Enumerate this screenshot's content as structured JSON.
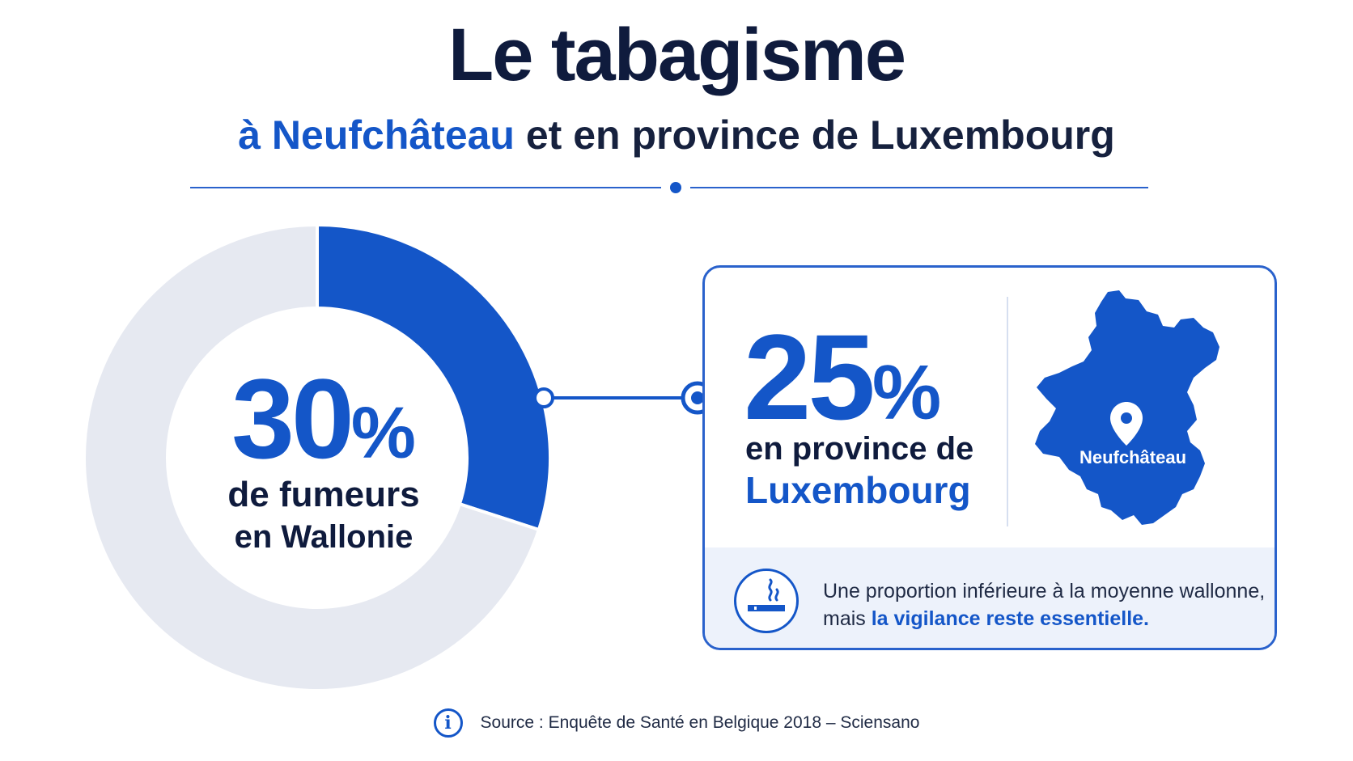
{
  "header": {
    "title": "Le tabagisme",
    "subtitle_accent": "à Neufchâteau",
    "subtitle_rest": " et en province de Luxembourg"
  },
  "chart_data": {
    "type": "pie",
    "variant": "donut",
    "slices": [
      {
        "label": "de fumeurs en Wallonie",
        "value": 30,
        "color": "#1456c8"
      },
      {
        "label": "",
        "value": 70,
        "color": "#e6e9f1"
      }
    ]
  },
  "donut_labels": {
    "value": "30",
    "pct": "%",
    "line1": "de fumeurs",
    "line2": "en Wallonie"
  },
  "card": {
    "value": "25",
    "pct": "%",
    "line1": "en province de",
    "line2": "Luxembourg",
    "map_label": "Neufchâteau",
    "note_line1": "Une proportion inférieure à la moyenne wallonne,",
    "note_prefix": "mais ",
    "note_strong": "la vigilance reste essentielle."
  },
  "colors": {
    "accent": "#1456c8",
    "dark": "#0f1b3d",
    "track": "#e6e9f1",
    "panel": "#edf2fb"
  },
  "icons": {
    "location": "map-pin-icon",
    "smoking": "cigarette-icon",
    "info": "info-icon"
  },
  "footer": {
    "info_glyph": "i",
    "source": "Source : Enquête de Santé en Belgique 2018 – Sciensano"
  }
}
